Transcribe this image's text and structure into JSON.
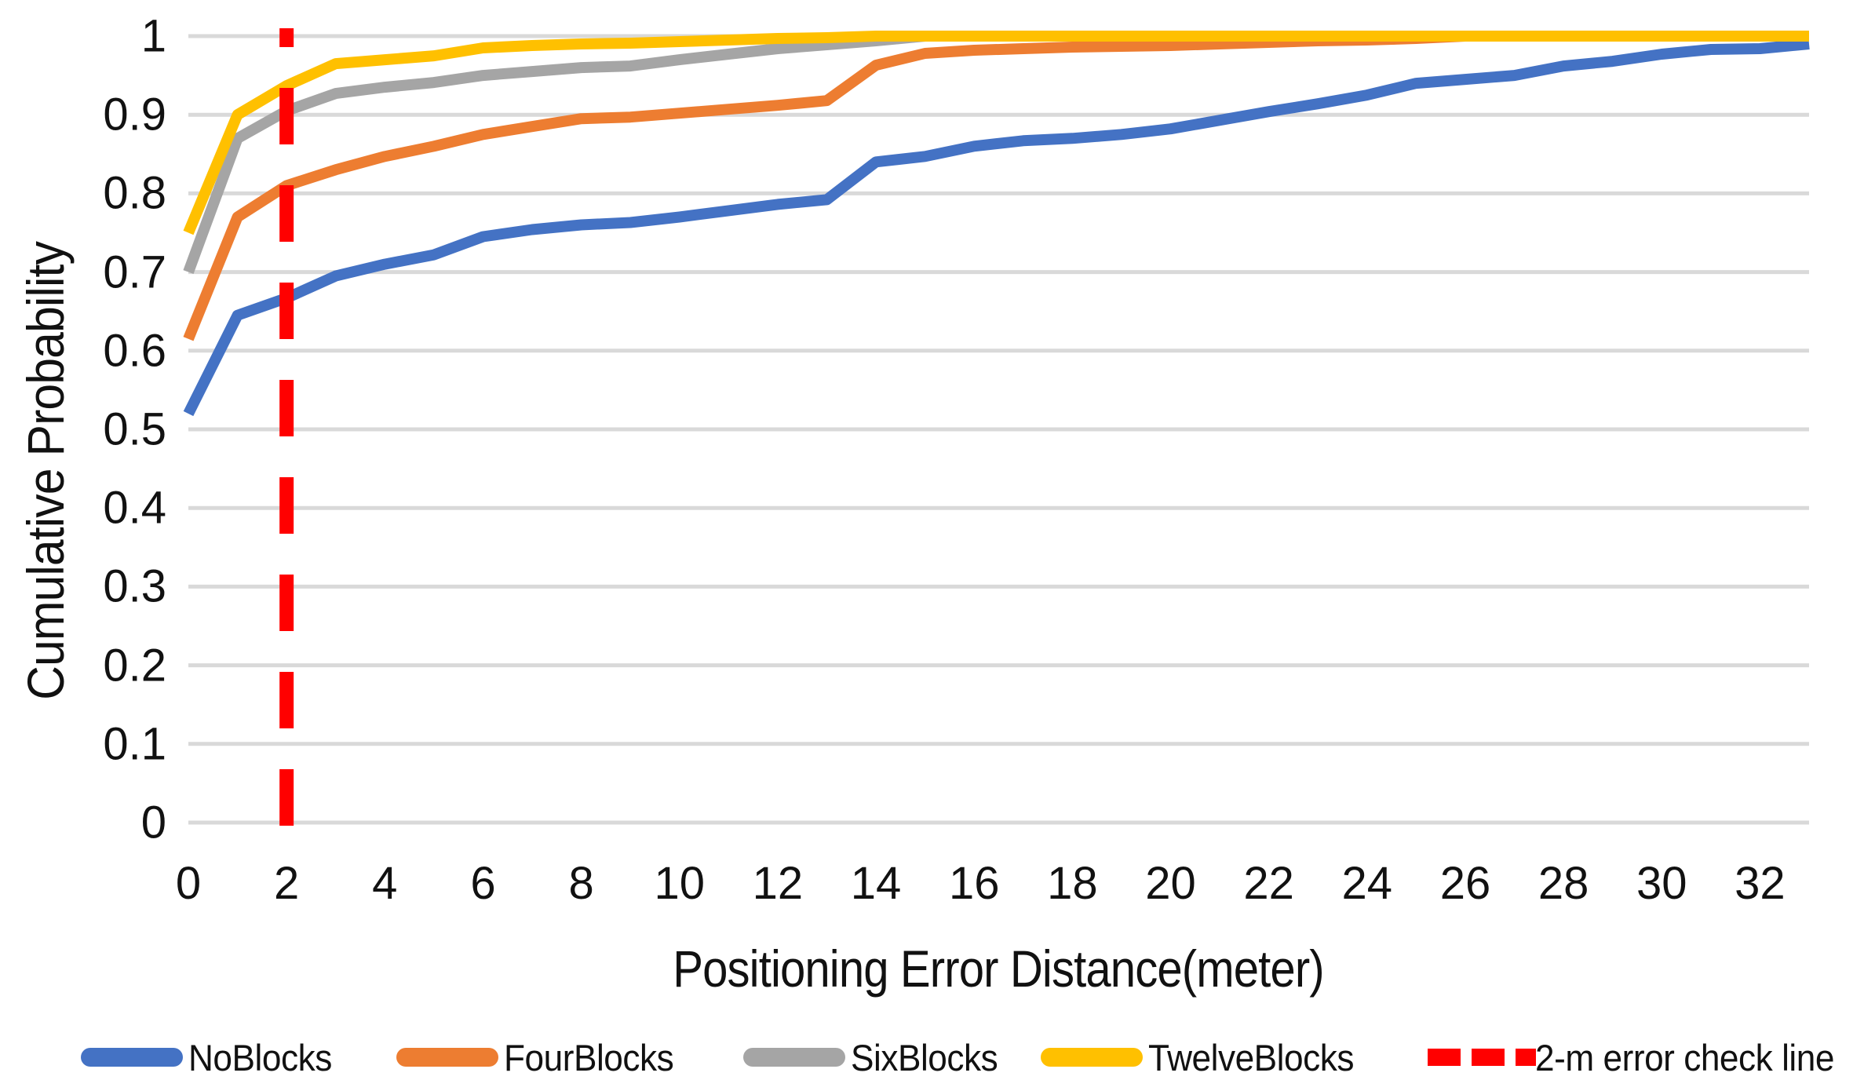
{
  "style": {
    "background": "#FFFFFF",
    "gridline_color": "#D9D9D9",
    "text_color": "#111111",
    "series_colors": {
      "NoBlocks": "#4472C4",
      "FourBlocks": "#ED7D31",
      "SixBlocks": "#A5A5A5",
      "TwelveBlocks": "#FFC000",
      "error_check_line": "#FF0000"
    }
  },
  "y_axis": {
    "title": "Cumulative Probability",
    "ticks": [
      "0",
      "0.1",
      "0.2",
      "0.3",
      "0.4",
      "0.5",
      "0.6",
      "0.7",
      "0.8",
      "0.9",
      "1"
    ]
  },
  "x_axis": {
    "title": "Positioning Error Distance(meter)",
    "ticks": [
      "0",
      "2",
      "4",
      "6",
      "8",
      "10",
      "12",
      "14",
      "16",
      "18",
      "20",
      "22",
      "24",
      "26",
      "28",
      "30",
      "32"
    ]
  },
  "legend": {
    "position": "bottom",
    "items": [
      {
        "label": "NoBlocks",
        "color": "#4472C4",
        "style": "solid"
      },
      {
        "label": "FourBlocks",
        "color": "#ED7D31",
        "style": "solid"
      },
      {
        "label": "SixBlocks",
        "color": "#A5A5A5",
        "style": "solid"
      },
      {
        "label": "TwelveBlocks",
        "color": "#FFC000",
        "style": "solid"
      },
      {
        "label": "2-m error check line",
        "color": "#FF0000",
        "style": "dashed"
      }
    ]
  },
  "chart_data": {
    "type": "line",
    "title": "",
    "xlabel": "Positioning Error Distance(meter)",
    "ylabel": "Cumulative Probability",
    "xlim": [
      0,
      33
    ],
    "ylim": [
      0,
      1
    ],
    "grid": "horizontal-only",
    "x": [
      0,
      1,
      2,
      3,
      4,
      5,
      6,
      7,
      8,
      9,
      10,
      11,
      12,
      13,
      14,
      15,
      16,
      17,
      18,
      19,
      20,
      21,
      22,
      23,
      24,
      25,
      26,
      27,
      28,
      29,
      30,
      31,
      32,
      33
    ],
    "series": [
      {
        "name": "NoBlocks",
        "color": "#4472C4",
        "values": [
          0.52,
          0.645,
          0.667,
          0.695,
          0.71,
          0.722,
          0.745,
          0.754,
          0.76,
          0.763,
          0.77,
          0.778,
          0.786,
          0.792,
          0.84,
          0.847,
          0.86,
          0.867,
          0.87,
          0.875,
          0.882,
          0.893,
          0.904,
          0.914,
          0.925,
          0.94,
          0.945,
          0.95,
          0.962,
          0.968,
          0.977,
          0.983,
          0.984,
          0.99
        ]
      },
      {
        "name": "FourBlocks",
        "color": "#ED7D31",
        "values": [
          0.615,
          0.77,
          0.81,
          0.83,
          0.847,
          0.86,
          0.875,
          0.885,
          0.895,
          0.897,
          0.902,
          0.907,
          0.912,
          0.918,
          0.963,
          0.978,
          0.982,
          0.984,
          0.986,
          0.987,
          0.988,
          0.99,
          0.992,
          0.994,
          0.995,
          0.997,
          1,
          1,
          1,
          1,
          1,
          1,
          1,
          1
        ]
      },
      {
        "name": "SixBlocks",
        "color": "#A5A5A5",
        "values": [
          0.7,
          0.87,
          0.905,
          0.927,
          0.935,
          0.941,
          0.95,
          0.955,
          0.96,
          0.962,
          0.97,
          0.977,
          0.984,
          0.989,
          0.994,
          1,
          1,
          1,
          1,
          1,
          1,
          1,
          1,
          1,
          1,
          1,
          1,
          1,
          1,
          1,
          1,
          1,
          1,
          1
        ]
      },
      {
        "name": "TwelveBlocks",
        "color": "#FFC000",
        "values": [
          0.75,
          0.9,
          0.937,
          0.965,
          0.97,
          0.975,
          0.985,
          0.988,
          0.99,
          0.991,
          0.993,
          0.995,
          0.997,
          0.998,
          1,
          1,
          1,
          1,
          1,
          1,
          1,
          1,
          1,
          1,
          1,
          1,
          1,
          1,
          1,
          1,
          1,
          1,
          1,
          1
        ]
      }
    ],
    "annotations": [
      {
        "type": "vline",
        "x": 2,
        "label": "2-m error check line",
        "color": "#FF0000",
        "style": "dashed"
      }
    ]
  }
}
